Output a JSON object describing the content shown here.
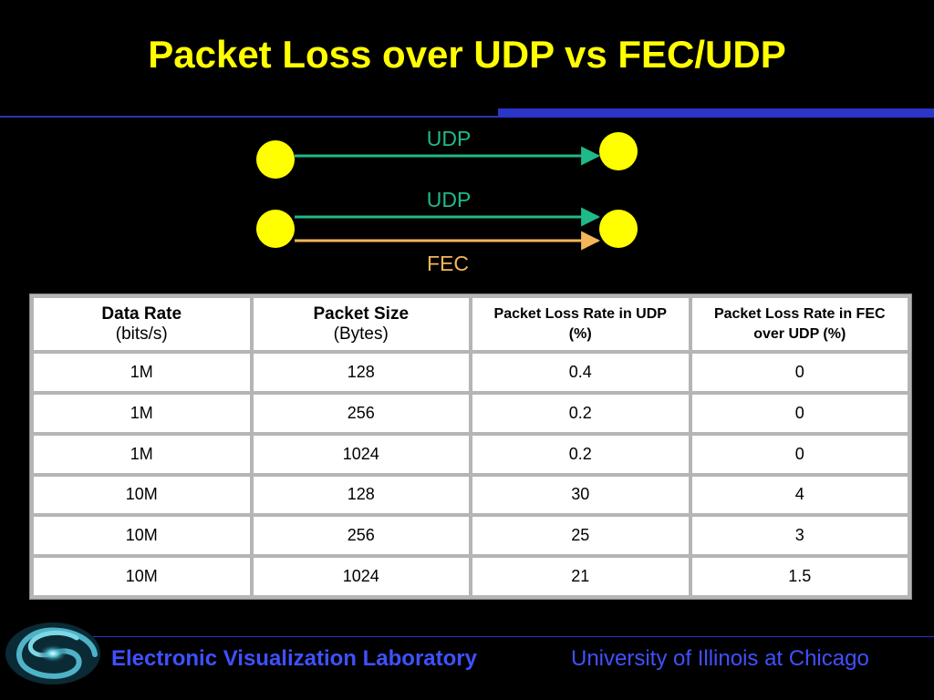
{
  "slide": {
    "title": "Packet Loss over UDP vs FEC/UDP"
  },
  "diagram": {
    "top_link_label": "UDP",
    "bottom_link_label_1": "UDP",
    "bottom_link_label_2": "FEC",
    "colors": {
      "node": "#ffff00",
      "udp_line": "#1fb98a",
      "fec_line": "#f5b65a"
    }
  },
  "table": {
    "headers": [
      {
        "main": "Data Rate",
        "sub": "(bits/s)"
      },
      {
        "main": "Packet Size",
        "sub": "(Bytes)"
      },
      {
        "main": "Packet Loss Rate in UDP (%)"
      },
      {
        "main": "Packet Loss Rate in FEC over UDP (%)"
      }
    ],
    "rows": [
      [
        "1M",
        "128",
        "0.4",
        "0"
      ],
      [
        "1M",
        "256",
        "0.2",
        "0"
      ],
      [
        "1M",
        "1024",
        "0.2",
        "0"
      ],
      [
        "10M",
        "128",
        "30",
        "4"
      ],
      [
        "10M",
        "256",
        "25",
        "3"
      ],
      [
        "10M",
        "1024",
        "21",
        "1.5"
      ]
    ]
  },
  "footer": {
    "lab": "Electronic Visualization Laboratory",
    "university": "University of Illinois at Chicago"
  }
}
